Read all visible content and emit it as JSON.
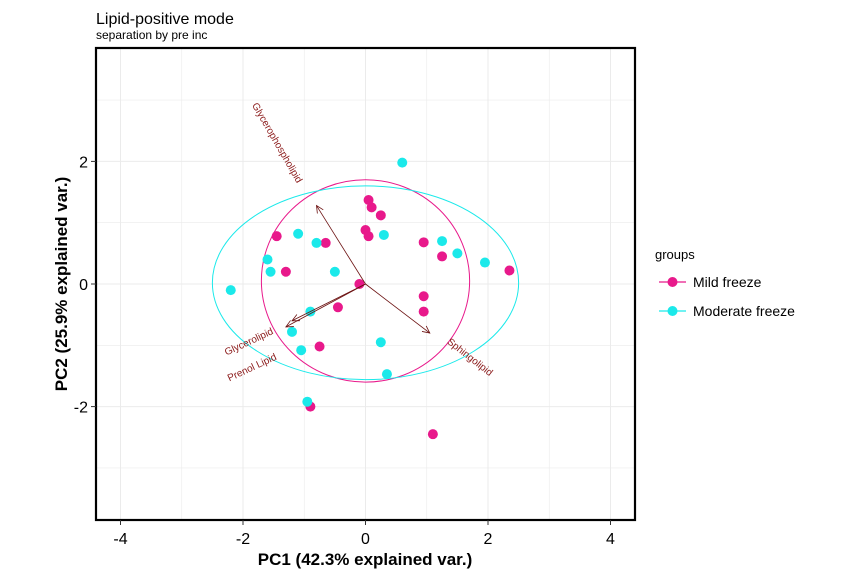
{
  "chart_data": {
    "type": "scatter",
    "title": "Lipid-positive mode",
    "subtitle": "separation by pre inc",
    "xlabel": "PC1 (42.3% explained var.)",
    "ylabel": "PC2 (25.9% explained var.)",
    "xlim": [
      -4.4,
      4.4
    ],
    "ylim": [
      -3.85,
      3.85
    ],
    "xticks": [
      -4,
      -2,
      0,
      2,
      4
    ],
    "yticks": [
      -2,
      0,
      2
    ],
    "grid": true,
    "legend_title": "groups",
    "legend_position": "right",
    "series": [
      {
        "name": "Mild freeze",
        "color": "#e8198b",
        "points": [
          [
            0.05,
            1.37
          ],
          [
            0.1,
            1.25
          ],
          [
            0.25,
            1.12
          ],
          [
            -0.65,
            0.67
          ],
          [
            -1.45,
            0.78
          ],
          [
            0.0,
            0.88
          ],
          [
            0.05,
            0.78
          ],
          [
            0.95,
            0.68
          ],
          [
            1.25,
            0.45
          ],
          [
            2.35,
            0.22
          ],
          [
            -1.3,
            0.2
          ],
          [
            -0.1,
            0.0
          ],
          [
            0.95,
            -0.2
          ],
          [
            -0.45,
            -0.38
          ],
          [
            0.95,
            -0.45
          ],
          [
            -0.75,
            -1.02
          ],
          [
            -0.9,
            -2.0
          ],
          [
            1.1,
            -2.45
          ]
        ],
        "ellipse": {
          "cx": 0.0,
          "cy": 0.05,
          "rx": 1.7,
          "ry": 1.65
        }
      },
      {
        "name": "Moderate freeze",
        "color": "#1be9ea",
        "points": [
          [
            0.6,
            1.98
          ],
          [
            -1.1,
            0.82
          ],
          [
            -0.8,
            0.67
          ],
          [
            0.3,
            0.8
          ],
          [
            1.25,
            0.7
          ],
          [
            1.5,
            0.5
          ],
          [
            1.95,
            0.35
          ],
          [
            -1.6,
            0.4
          ],
          [
            -1.55,
            0.2
          ],
          [
            -0.5,
            0.2
          ],
          [
            -2.2,
            -0.1
          ],
          [
            -0.9,
            -0.45
          ],
          [
            -1.2,
            -0.78
          ],
          [
            0.25,
            -0.95
          ],
          [
            -1.05,
            -1.08
          ],
          [
            0.35,
            -1.47
          ],
          [
            -0.95,
            -1.92
          ]
        ],
        "ellipse": {
          "cx": 0.0,
          "cy": 0.02,
          "rx": 2.5,
          "ry": 1.58
        }
      }
    ],
    "loadings": {
      "origin": [
        0.0,
        0.0
      ],
      "vectors": [
        {
          "label": "Glycerophospholipid",
          "x": -0.8,
          "y": 1.28,
          "lx": -1.45,
          "ly": 2.3,
          "angle": 60
        },
        {
          "label": "Sphingolipid",
          "x": 1.05,
          "y": -0.8,
          "lx": 1.7,
          "ly": -1.2,
          "angle": 38
        },
        {
          "label": "Glycerolipid",
          "x": -1.2,
          "y": -0.6,
          "lx": -1.9,
          "ly": -0.95,
          "angle": -25
        },
        {
          "label": "Prenol Lipid",
          "x": -1.3,
          "y": -0.7,
          "lx": -1.85,
          "ly": -1.37,
          "angle": -25
        }
      ]
    }
  }
}
